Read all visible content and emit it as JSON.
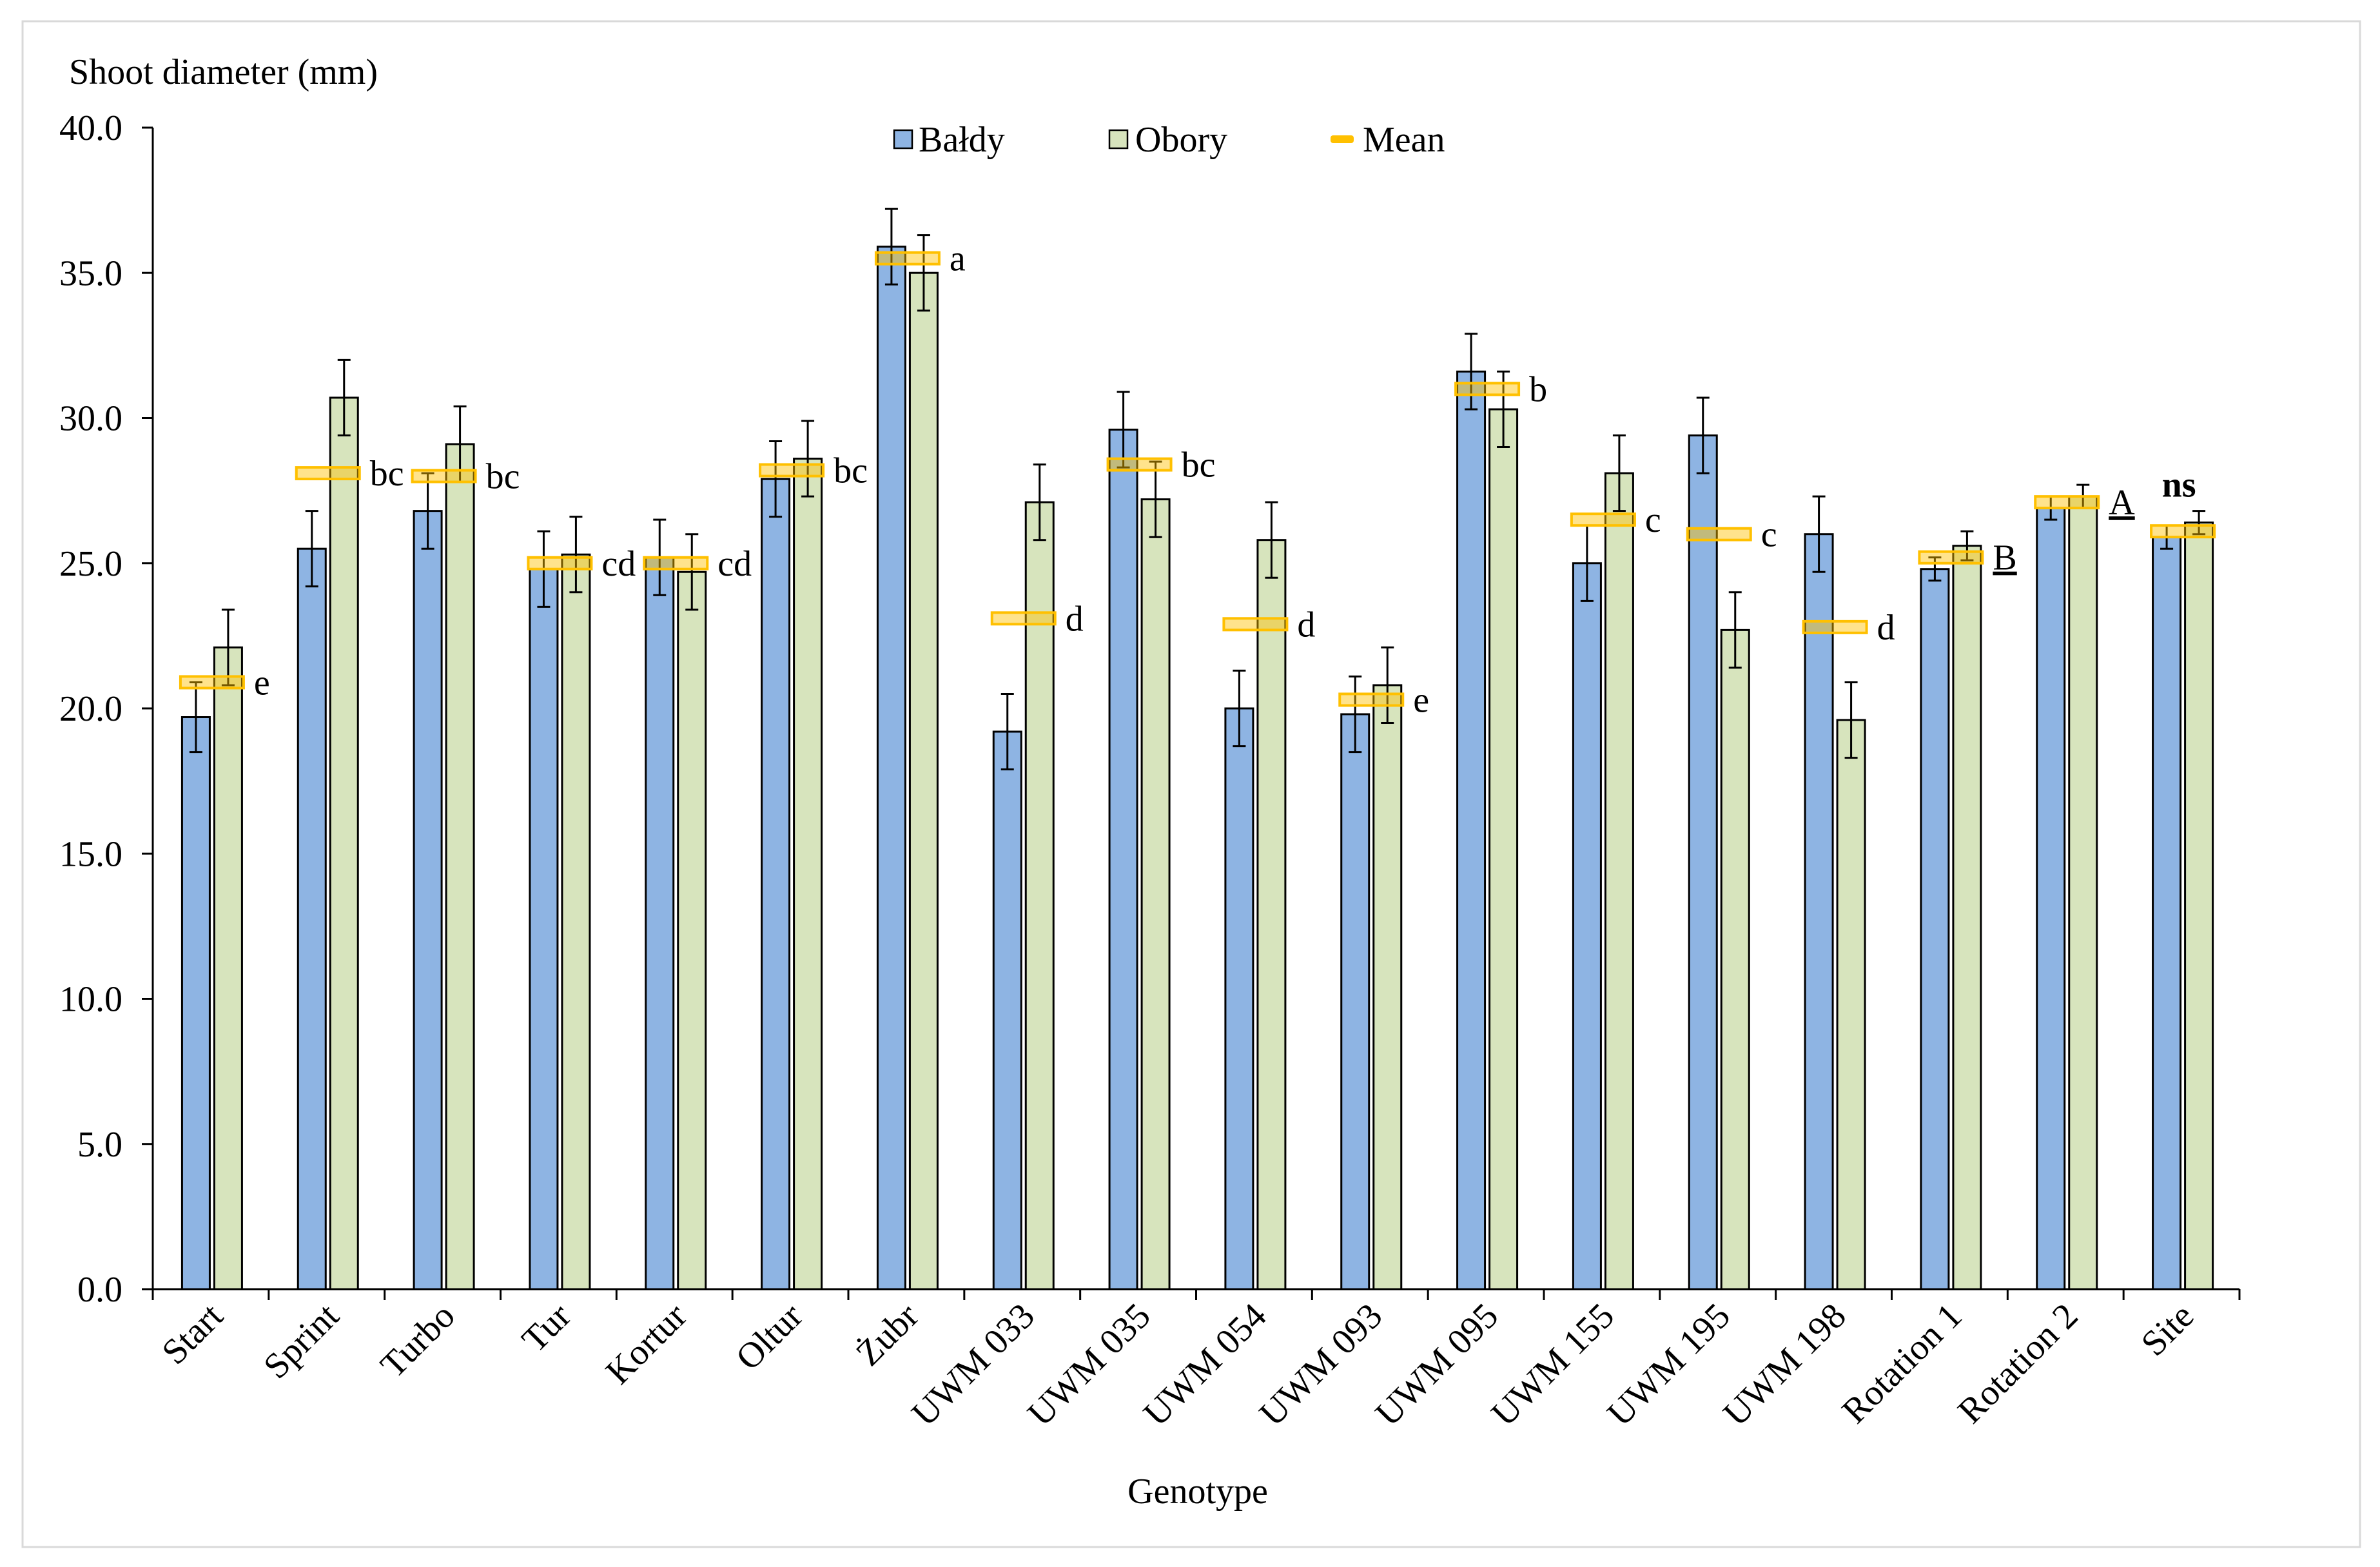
{
  "chart_data": {
    "type": "bar",
    "ylabel": "Shoot diameter (mm)",
    "xlabel": "Genotype",
    "ylim": [
      0,
      40
    ],
    "yticks": [
      "0.0",
      "5.0",
      "10.0",
      "15.0",
      "20.0",
      "25.0",
      "30.0",
      "35.0",
      "40.0"
    ],
    "legend_position": "top",
    "categories": [
      "Start",
      "Sprint",
      "Turbo",
      "Tur",
      "Kortur",
      "Oltur",
      "Żubr",
      "UWM 033",
      "UWM 035",
      "UWM 054",
      "UWM 093",
      "UWM 095",
      "UWM 155",
      "UWM 195",
      "UWM 198",
      "Rotation 1",
      "Rotation 2",
      "Site"
    ],
    "series": [
      {
        "name": "Bałdy",
        "color": "#8EB4E3",
        "values": [
          19.7,
          25.5,
          26.8,
          24.8,
          25.2,
          27.9,
          35.9,
          19.2,
          29.6,
          20.0,
          19.8,
          31.6,
          25.0,
          29.4,
          26.0,
          24.8,
          26.9,
          25.9
        ],
        "errors": [
          1.2,
          1.3,
          1.3,
          1.3,
          1.3,
          1.3,
          1.3,
          1.3,
          1.3,
          1.3,
          1.3,
          1.3,
          1.3,
          1.3,
          1.3,
          0.4,
          0.4,
          0.4
        ]
      },
      {
        "name": "Obory",
        "color": "#D7E4BD",
        "values": [
          22.1,
          30.7,
          29.1,
          25.3,
          24.7,
          28.6,
          35.0,
          27.1,
          27.2,
          25.8,
          20.8,
          30.3,
          28.1,
          22.7,
          19.6,
          25.6,
          27.3,
          26.4
        ],
        "errors": [
          1.3,
          1.3,
          1.3,
          1.3,
          1.3,
          1.3,
          1.3,
          1.3,
          1.3,
          1.3,
          1.3,
          1.3,
          1.3,
          1.3,
          1.3,
          0.5,
          0.4,
          0.4
        ]
      }
    ],
    "mean": {
      "name": "Mean",
      "color": "#FFC000",
      "values": [
        20.9,
        28.1,
        28.0,
        25.0,
        25.0,
        28.2,
        35.5,
        23.1,
        28.4,
        22.9,
        20.3,
        31.0,
        26.5,
        26.0,
        22.8,
        25.2,
        27.1,
        26.1
      ]
    },
    "letters": [
      {
        "text": "e"
      },
      {
        "text": "bc"
      },
      {
        "text": "bc"
      },
      {
        "text": "cd"
      },
      {
        "text": "cd"
      },
      {
        "text": "bc"
      },
      {
        "text": "a"
      },
      {
        "text": "d"
      },
      {
        "text": "bc"
      },
      {
        "text": "d"
      },
      {
        "text": "e"
      },
      {
        "text": "b"
      },
      {
        "text": "c"
      },
      {
        "text": "c"
      },
      {
        "text": "d"
      },
      {
        "text": "B",
        "underline": true
      },
      {
        "text": "A",
        "underline": true
      },
      {
        "text": "ns",
        "bold": true,
        "above": true
      }
    ]
  }
}
